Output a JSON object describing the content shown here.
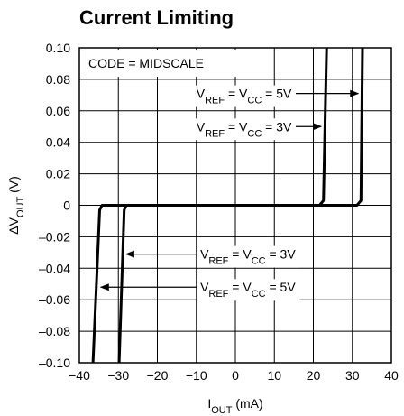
{
  "chart_data": {
    "type": "line",
    "title": "Current Limiting",
    "xlabel": {
      "main": "I",
      "sub": "OUT",
      "rest": " (mA)"
    },
    "ylabel": {
      "pre": "ΔV",
      "sub": "OUT",
      "rest": " (V)"
    },
    "xlim": [
      -40,
      40
    ],
    "ylim": [
      -0.1,
      0.1
    ],
    "x_ticks": [
      -40,
      -30,
      -20,
      -10,
      0,
      10,
      20,
      30,
      40
    ],
    "x_tick_labels": [
      "−40",
      "−30",
      "−20",
      "−10",
      "0",
      "10",
      "20",
      "30",
      "40"
    ],
    "y_ticks": [
      0.1,
      0.08,
      0.06,
      0.04,
      0.02,
      0,
      -0.02,
      -0.04,
      -0.06,
      -0.08,
      -0.1
    ],
    "y_tick_labels": [
      "0.10",
      "0.08",
      "0.06",
      "0.04",
      "0.02",
      "0",
      "–0.02",
      "–0.04",
      "–0.06",
      "–0.08",
      "–0.10"
    ],
    "grid": true,
    "code_label": "CODE = MIDSCALE",
    "series": [
      {
        "condition": "VREF = VCC = 5V",
        "x": [
          -36.5,
          -34.8,
          -34.2,
          31.2,
          32.2,
          32.6
        ],
        "y": [
          -0.1,
          -0.003,
          0,
          0,
          0.003,
          0.1
        ]
      },
      {
        "condition": "VREF = VCC = 3V",
        "x": [
          -29.8,
          -28.5,
          -28.0,
          21.6,
          22.6,
          23.4
        ],
        "y": [
          -0.1,
          -0.003,
          0,
          0,
          0.003,
          0.1
        ]
      }
    ],
    "annotations": [
      {
        "parts": [
          "V",
          "REF",
          " = V",
          "CC",
          " = 5V"
        ],
        "text_x": -10,
        "text_y": 0.071,
        "arrow_to": [
          31.5,
          0.071
        ]
      },
      {
        "parts": [
          "V",
          "REF",
          " = V",
          "CC",
          " = 3V"
        ],
        "text_x": -10,
        "text_y": 0.05,
        "arrow_to": [
          22.0,
          0.05
        ]
      },
      {
        "parts": [
          "V",
          "REF",
          " = V",
          "CC",
          " = 3V"
        ],
        "text_x": -9,
        "text_y": -0.031,
        "arrow_to": [
          -28.0,
          -0.031
        ]
      },
      {
        "parts": [
          "V",
          "REF",
          " = V",
          "CC",
          " = 5V"
        ],
        "text_x": -9,
        "text_y": -0.052,
        "arrow_to": [
          -34.5,
          -0.052
        ]
      }
    ]
  }
}
